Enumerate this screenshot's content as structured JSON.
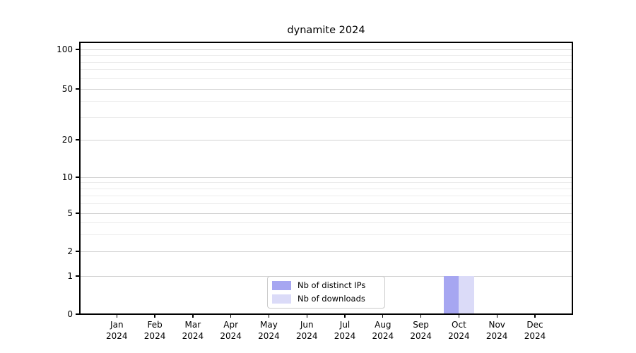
{
  "title": "dynamite 2024",
  "legend": {
    "entries": [
      {
        "label": "Nb of distinct IPs",
        "color": "#a6a6f1"
      },
      {
        "label": "Nb of downloads",
        "color": "#dbdbf8"
      }
    ]
  },
  "chart_data": {
    "type": "bar",
    "title": "dynamite 2024",
    "categories": [
      "Jan",
      "Feb",
      "Mar",
      "Apr",
      "May",
      "Jun",
      "Jul",
      "Aug",
      "Sep",
      "Oct",
      "Nov",
      "Dec"
    ],
    "year_label": "2024",
    "series": [
      {
        "name": "Nb of distinct IPs",
        "color": "#a6a6f1",
        "values": [
          0,
          0,
          0,
          0,
          0,
          0,
          0,
          0,
          0,
          1,
          0,
          0
        ]
      },
      {
        "name": "Nb of downloads",
        "color": "#dbdbf8",
        "values": [
          0,
          0,
          0,
          0,
          0,
          0,
          0,
          0,
          0,
          1,
          0,
          0
        ]
      }
    ],
    "xlabel": "",
    "ylabel": "",
    "ylim": [
      0,
      100
    ],
    "yscale": "symlog",
    "yticks": [
      0,
      1,
      2,
      5,
      10,
      20,
      50,
      100
    ],
    "yticks_minor": [
      3,
      4,
      6,
      7,
      8,
      9,
      30,
      40,
      60,
      70,
      80,
      90
    ],
    "grid": true,
    "legend_position": "lower center"
  }
}
